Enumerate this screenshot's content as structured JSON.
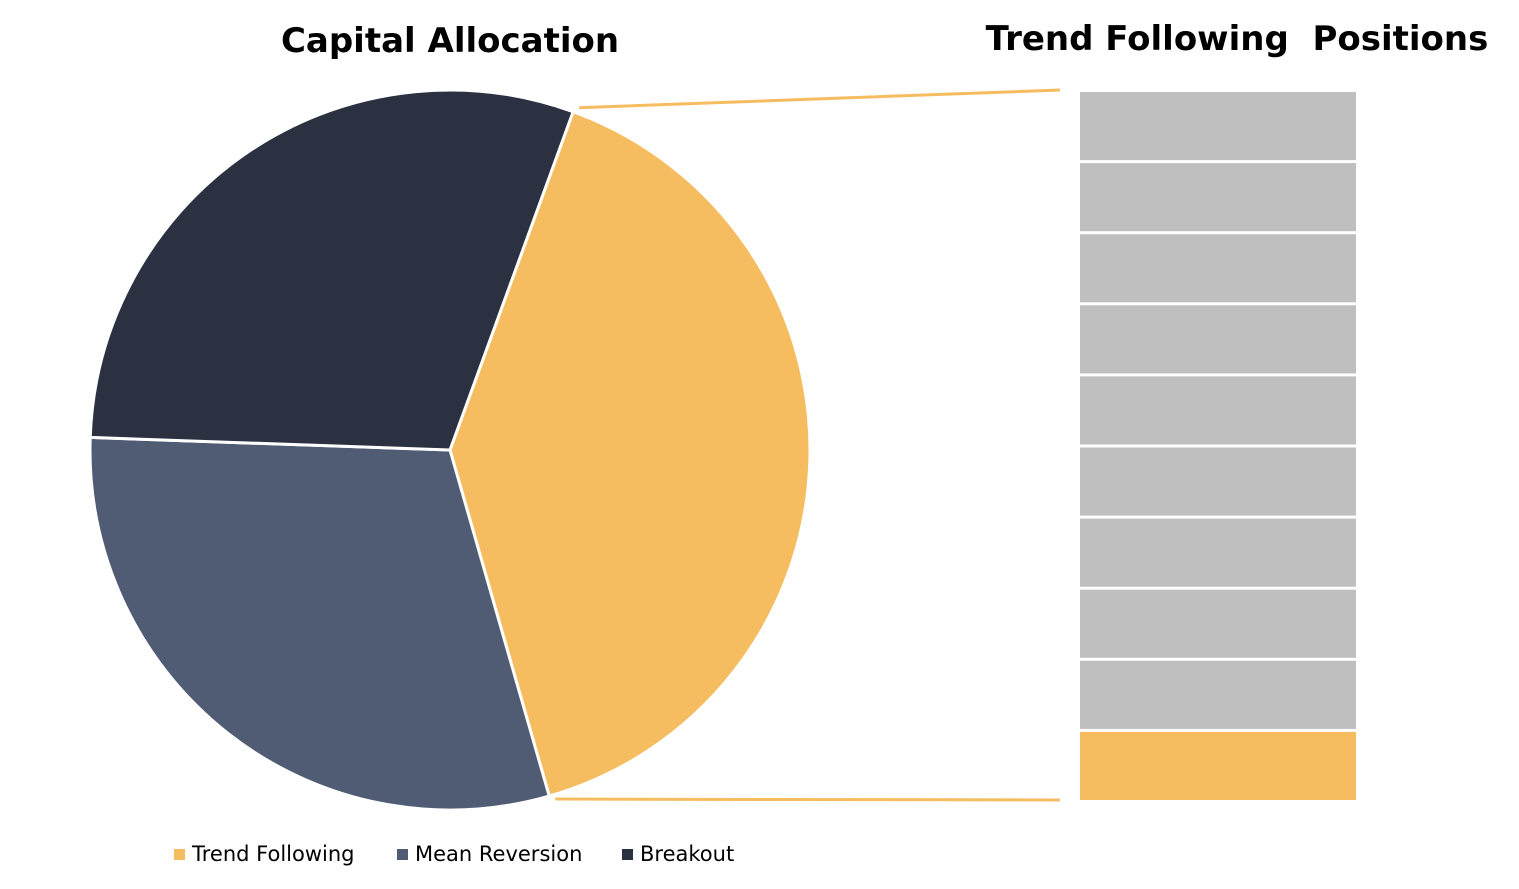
{
  "chart_data": [
    {
      "type": "pie",
      "title": "Capital Allocation",
      "categories": [
        "Trend Following",
        "Mean Reversion",
        "Breakout"
      ],
      "values": [
        40,
        30,
        30
      ],
      "colors": [
        "#F6BD60",
        "#505C74",
        "#2C3141"
      ],
      "start_angle_deg": 20,
      "direction": "clockwise",
      "legend": {
        "position": "bottom",
        "entries": [
          "Trend Following",
          "Mean Reversion",
          "Breakout"
        ]
      }
    },
    {
      "type": "bar",
      "title": "Trend Following  Positions",
      "orientation": "stacked-vertical",
      "segments": 10,
      "highlighted_segment_from_bottom": 1,
      "segment_color": "#BFBFBF",
      "highlight_color": "#F6BD60",
      "connector_color": "#F6BD60"
    }
  ]
}
